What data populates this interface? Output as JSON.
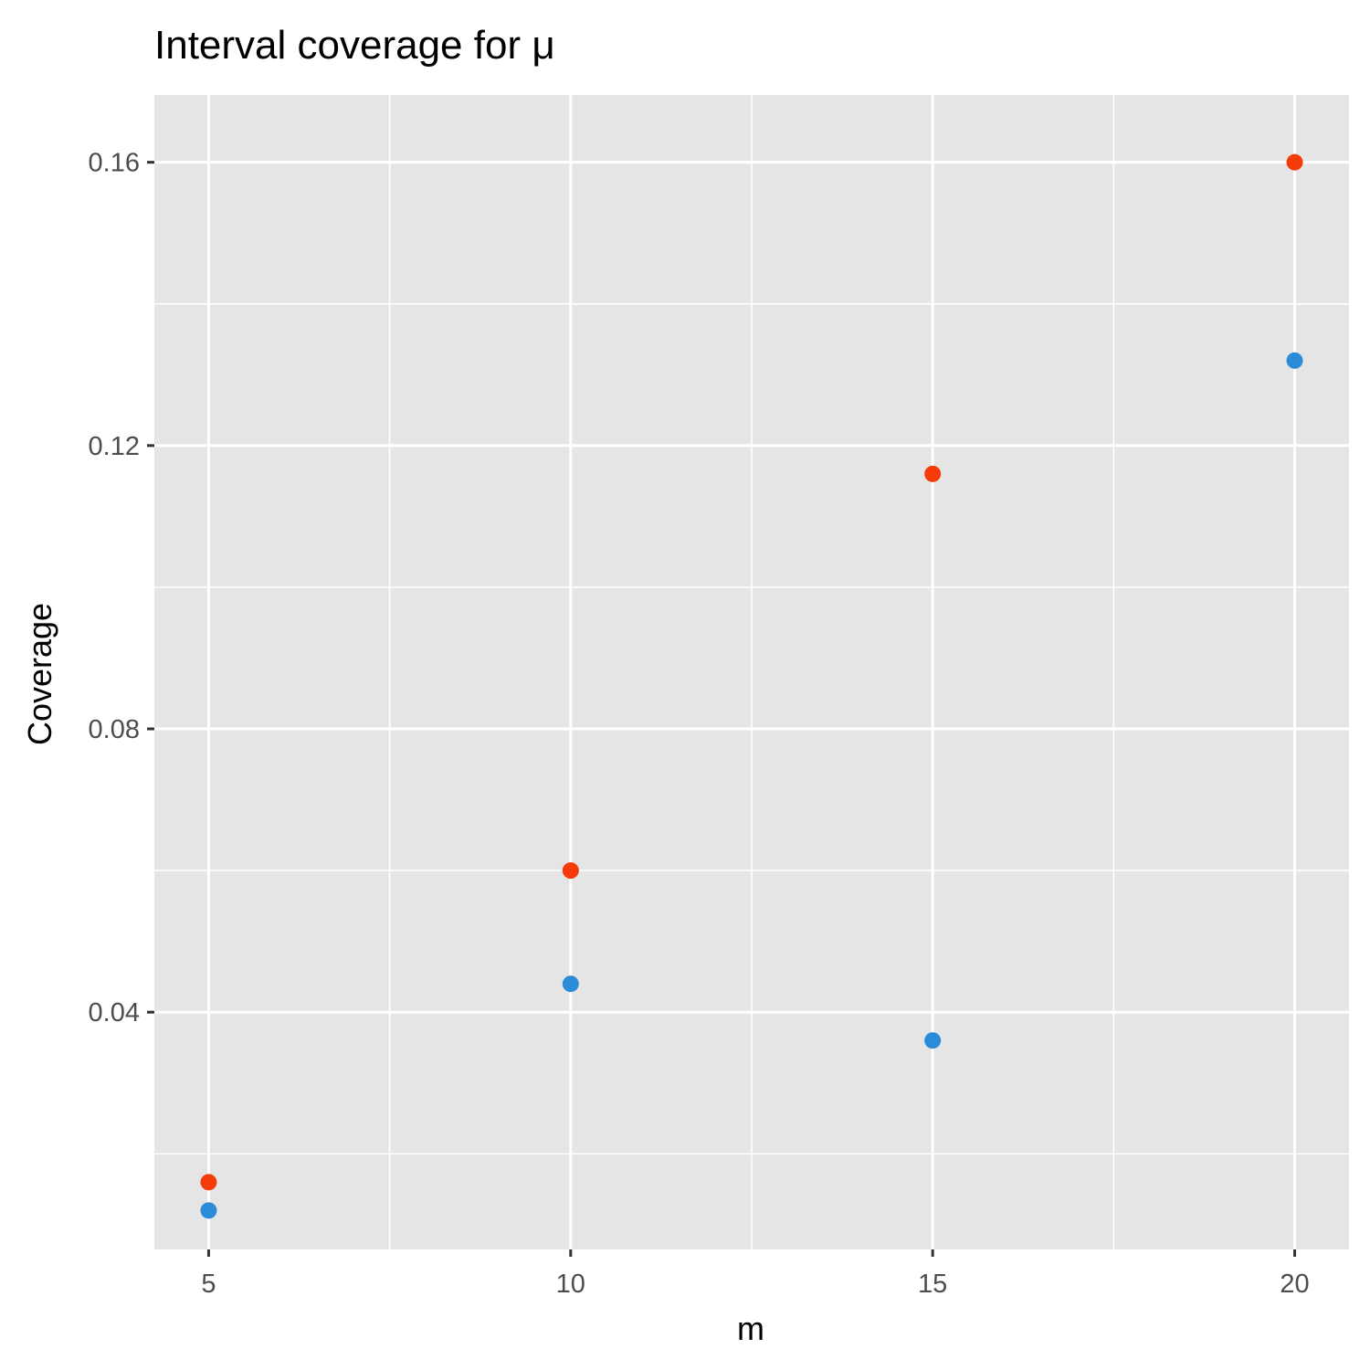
{
  "chart_data": {
    "type": "scatter",
    "title": "Interval coverage for μ",
    "xlabel": "m",
    "ylabel": "Coverage",
    "xlim": [
      4.25,
      20.75
    ],
    "ylim": [
      0.0065,
      0.1695
    ],
    "x_ticks": [
      5,
      10,
      15,
      20
    ],
    "x_tick_labels": [
      "5",
      "10",
      "15",
      "20"
    ],
    "y_ticks": [
      0.04,
      0.08,
      0.12,
      0.16
    ],
    "y_tick_labels": [
      "0.04",
      "0.08",
      "0.12",
      "0.16"
    ],
    "grid": true,
    "legend": "none",
    "series": [
      {
        "color": "#f53b0a",
        "x": [
          5,
          10,
          15,
          20
        ],
        "y": [
          0.016,
          0.06,
          0.116,
          0.16
        ]
      },
      {
        "color": "#2a8bd8",
        "x": [
          5,
          10,
          15,
          20
        ],
        "y": [
          0.012,
          0.044,
          0.036,
          0.132
        ]
      }
    ],
    "panel_background": "#e5e5e5",
    "grid_color": "#ffffff"
  }
}
